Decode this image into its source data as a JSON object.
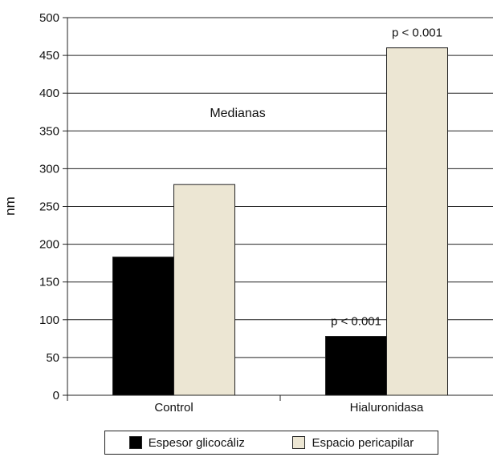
{
  "chart_data": {
    "type": "bar",
    "categories": [
      "Control",
      "Hialuronidasa"
    ],
    "series": [
      {
        "name": "Espesor glicocáliz",
        "values": [
          183,
          78
        ],
        "color": "#000000"
      },
      {
        "name": "Espacio pericapilar",
        "values": [
          279,
          460
        ],
        "color": "#ece6d3"
      }
    ],
    "ylabel": "nm",
    "ylim": [
      0,
      500
    ],
    "yticks": [
      0,
      50,
      100,
      150,
      200,
      250,
      300,
      350,
      400,
      450,
      500
    ],
    "grid": true,
    "annotation": "Medianas",
    "bar_labels": [
      {
        "series": 0,
        "category": 1,
        "text": "p < 0.001"
      },
      {
        "series": 1,
        "category": 1,
        "text": "p < 0.001"
      }
    ],
    "legend_position": "bottom"
  }
}
